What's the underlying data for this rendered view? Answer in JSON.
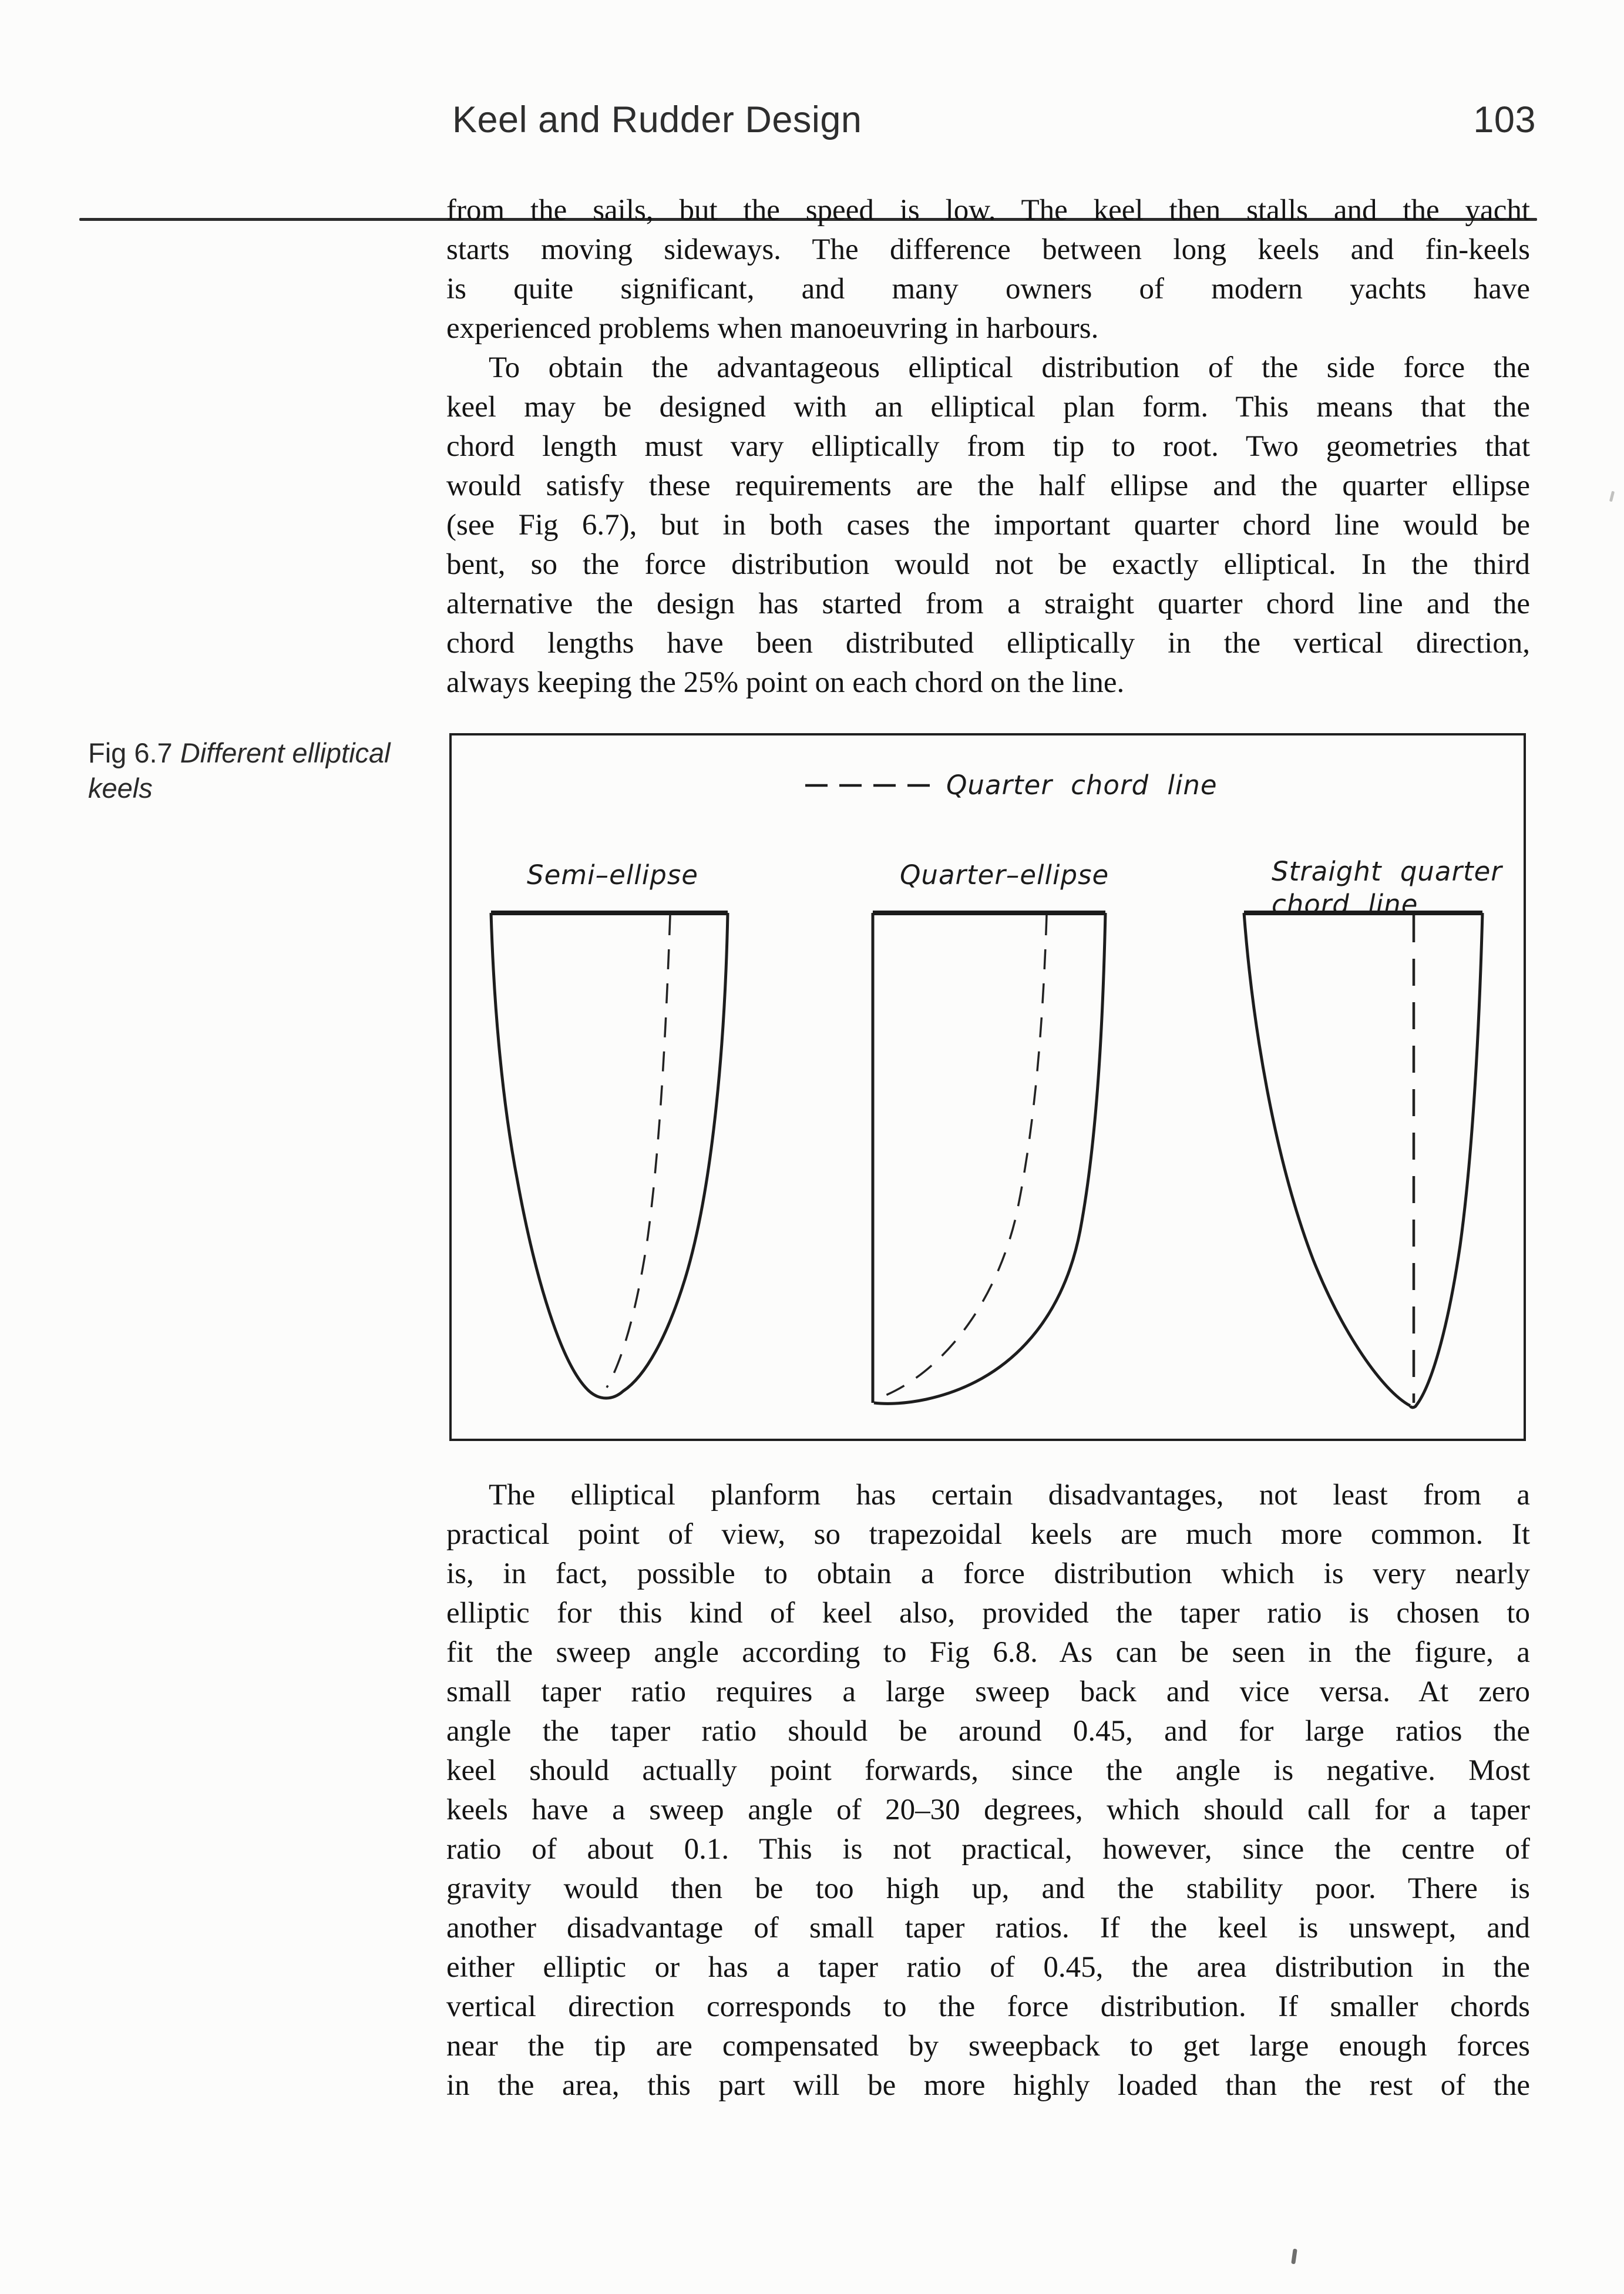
{
  "header": {
    "title": "Keel and Rudder Design",
    "page_number": "103"
  },
  "caption": {
    "fig_label": "Fig 6.7",
    "caption_text": " Different elliptical keels"
  },
  "figure": {
    "legend_label": "Quarter chord line",
    "keel_labels": {
      "semi": "Semi–ellipse",
      "quarter": "Quarter–ellipse",
      "straight": "Straight quarter\nchord line"
    }
  },
  "paragraphs": [
    {
      "indent": false,
      "last_justified": false,
      "lines": [
        "from the sails, but the speed is low. The keel then stalls and the yacht",
        "starts moving sideways. The difference between long keels and fin-keels",
        "is quite significant, and many owners of modern yachts have",
        "experienced problems when manoeuvring in harbours."
      ]
    },
    {
      "indent": true,
      "last_justified": false,
      "lines": [
        "To obtain the advantageous elliptical distribution of the side force the",
        "keel may be designed with an elliptical plan form. This means that the",
        "chord length must vary elliptically from tip to root. Two geometries that",
        "would satisfy these requirements are the half ellipse and the quarter ellipse",
        "(see Fig 6.7), but in both cases the important quarter chord line would be",
        "bent, so the force distribution would not be exactly elliptical. In the third",
        "alternative the design has started from a straight quarter chord line and the",
        "chord lengths have been distributed elliptically in the vertical direction,",
        "always keeping the 25% point on each chord on the line."
      ]
    },
    {
      "indent": true,
      "last_justified": true,
      "lines": [
        "The elliptical planform has certain disadvantages, not least from a",
        "practical point of view, so trapezoidal keels are much more common. It",
        "is, in fact, possible to obtain a force distribution which is very nearly",
        "elliptic for this kind of keel also, provided the taper ratio is chosen to",
        "fit the sweep angle according to Fig 6.8. As can be seen in the figure, a",
        "small taper ratio requires a large sweep back and vice versa. At zero",
        "angle the taper ratio should be around 0.45, and for large ratios the",
        "keel should actually point forwards, since the angle is negative. Most",
        "keels have a sweep angle of 20–30 degrees, which should call for a taper",
        "ratio of about 0.1. This is not practical, however, since the centre of",
        "gravity would then be too high up, and the stability poor. There is",
        "another disadvantage of small taper ratios. If the keel is unswept, and",
        "either elliptic or has a taper ratio of 0.45, the area distribution in the",
        "vertical direction corresponds to the force distribution. If smaller chords",
        "near the tip are compensated by sweepback to get large enough forces",
        "in the area, this part will be more highly loaded than the rest of the"
      ]
    }
  ]
}
